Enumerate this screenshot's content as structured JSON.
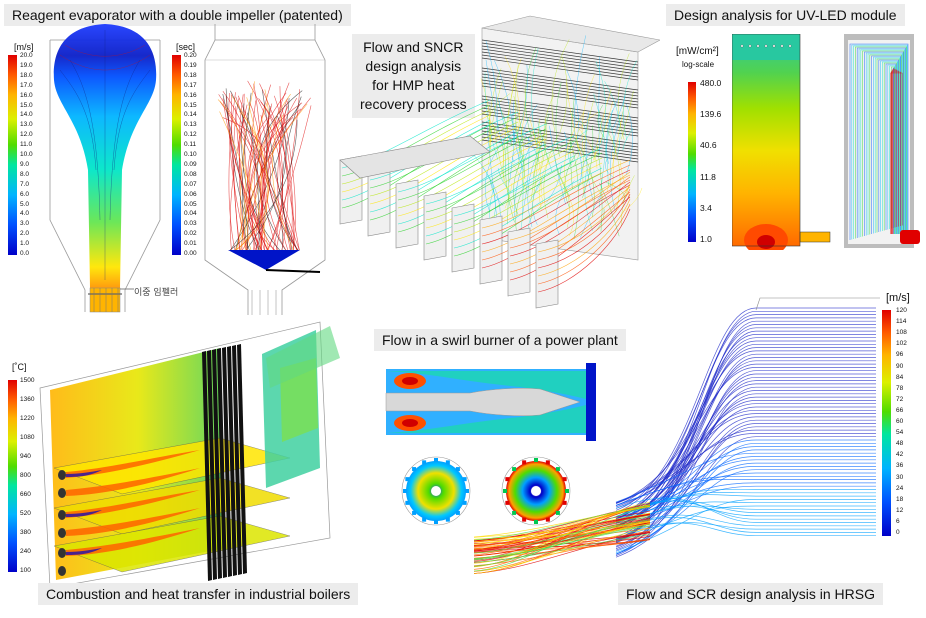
{
  "captions": {
    "evaporator": "Reagent evaporator with a double impeller (patented)",
    "sncr": [
      "Flow and SNCR",
      "design analysis",
      "for HMP heat",
      "recovery process"
    ],
    "uvled": "Design analysis for UV-LED module",
    "boiler": "Combustion and heat transfer in industrial boilers",
    "swirl": "Flow in a swirl burner of a power plant",
    "hrsg": "Flow and SCR design analysis in HRSG"
  },
  "scales": {
    "velocity_small": {
      "title": "[m/s]",
      "ticks": [
        "20.0",
        "19.0",
        "18.0",
        "17.0",
        "16.0",
        "15.0",
        "14.0",
        "13.0",
        "12.0",
        "11.0",
        "10.0",
        "9.0",
        "8.0",
        "7.0",
        "6.0",
        "5.0",
        "4.0",
        "3.0",
        "2.0",
        "1.0",
        "0.0"
      ]
    },
    "time": {
      "title": "[sec]",
      "ticks": [
        "0.20",
        "0.19",
        "0.18",
        "0.17",
        "0.16",
        "0.15",
        "0.14",
        "0.13",
        "0.12",
        "0.11",
        "0.10",
        "0.09",
        "0.08",
        "0.07",
        "0.06",
        "0.05",
        "0.04",
        "0.03",
        "0.02",
        "0.01",
        "0.00"
      ]
    },
    "irradiance": {
      "title": "[mW/cm²]",
      "subtitle": "log-scale",
      "ticks": [
        "480.0",
        "139.6",
        "40.6",
        "11.8",
        "3.4",
        "1.0"
      ]
    },
    "temperature": {
      "title": "[˚C]",
      "ticks": [
        "1500",
        "1360",
        "1220",
        "1080",
        "940",
        "800",
        "660",
        "520",
        "380",
        "240",
        "100"
      ]
    },
    "velocity_large": {
      "title": "[m/s]",
      "ticks": [
        "120",
        "114",
        "108",
        "102",
        "96",
        "90",
        "84",
        "78",
        "72",
        "66",
        "60",
        "54",
        "48",
        "42",
        "36",
        "30",
        "24",
        "18",
        "12",
        "6",
        "0"
      ]
    }
  },
  "annotations": {
    "impeller_label": "이중 임펠러"
  },
  "colors": {
    "caption_bg": "#ececec",
    "jet": [
      "#0000c8",
      "#0050ff",
      "#00b4ff",
      "#00e6c8",
      "#28d228",
      "#b4e600",
      "#ffe600",
      "#ffa000",
      "#ff5000",
      "#e00000"
    ]
  }
}
